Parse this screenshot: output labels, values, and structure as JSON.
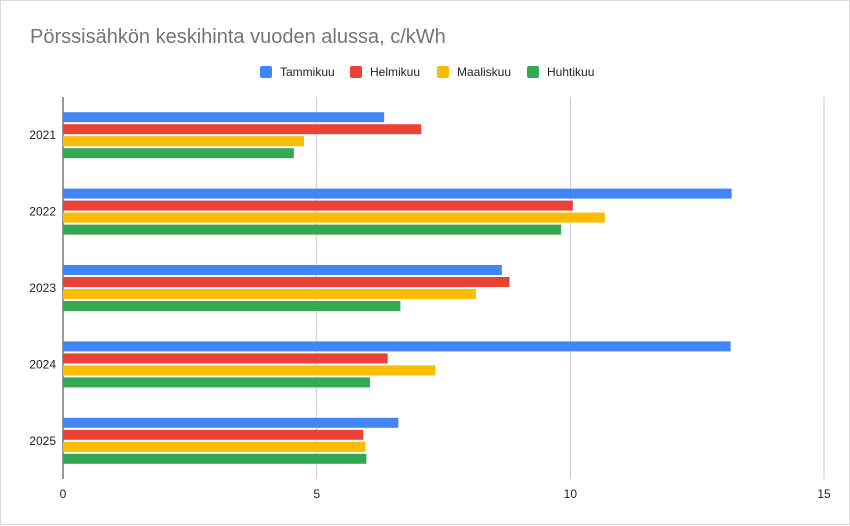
{
  "chart_data": {
    "type": "bar",
    "orientation": "horizontal",
    "title": "Pörssisähkön keskihinta vuoden alussa, c/kWh",
    "categories": [
      "2021",
      "2022",
      "2023",
      "2024",
      "2025"
    ],
    "series": [
      {
        "name": "Tammikuu",
        "color": "#4285f4",
        "values": [
          6.33,
          13.18,
          8.65,
          13.16,
          6.61
        ]
      },
      {
        "name": "Helmikuu",
        "color": "#ea4335",
        "values": [
          7.06,
          10.05,
          8.8,
          6.4,
          5.92
        ]
      },
      {
        "name": "Maaliskuu",
        "color": "#fbbc04",
        "values": [
          4.75,
          10.68,
          8.14,
          7.34,
          5.96
        ]
      },
      {
        "name": "Huhtikuu",
        "color": "#34a853",
        "values": [
          4.55,
          9.82,
          6.65,
          6.05,
          5.98
        ]
      }
    ],
    "xlim": [
      0,
      15
    ],
    "xticks": [
      "0",
      "5",
      "10",
      "15"
    ],
    "grid": true,
    "legend_position": "top"
  }
}
